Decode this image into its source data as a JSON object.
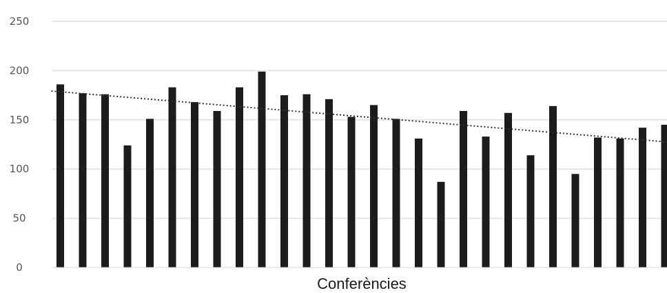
{
  "chart_data": {
    "type": "bar",
    "title": "",
    "xlabel": "Conferències",
    "ylabel": "",
    "ylim": [
      0,
      250
    ],
    "yticks": [
      "0",
      "50",
      "100",
      "150",
      "200",
      "250"
    ],
    "grid": true,
    "trendline": {
      "style": "dotted",
      "type": "linear"
    },
    "colors": {
      "bar": "#1c1c1c",
      "grid": "#e6e6e6",
      "trend": "#333333"
    },
    "values": [
      186,
      177,
      176,
      124,
      151,
      183,
      168,
      159,
      183,
      199,
      175,
      176,
      171,
      153,
      165,
      151,
      131,
      87,
      159,
      133,
      157,
      114,
      164,
      95,
      132,
      131,
      142,
      145
    ]
  }
}
